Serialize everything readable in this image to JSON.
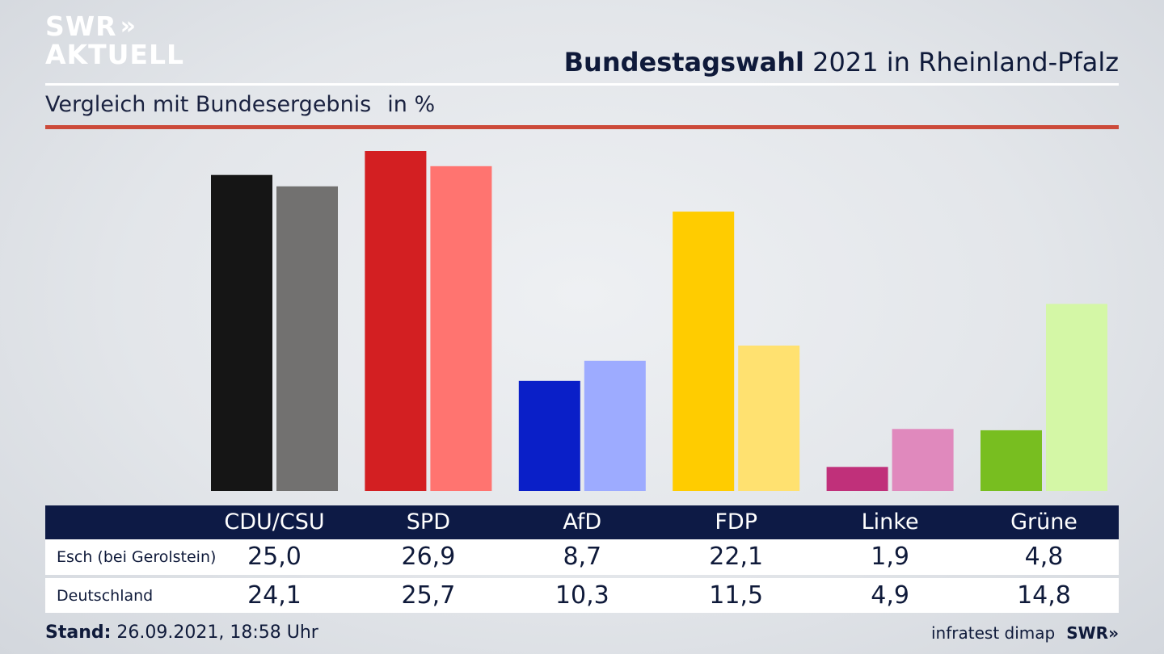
{
  "logo": {
    "line1": "SWR",
    "chevrons": "»",
    "line2": "AKTUELL"
  },
  "header": {
    "title_bold": "Bundestagswahl",
    "title_rest": " 2021 in Rheinland-Pfalz",
    "subtitle": "Vergleich mit Bundesergebnis",
    "unit": "in %"
  },
  "footer": {
    "stand_label": "Stand:",
    "stand_value": " 26.09.2021, 18:58 Uhr",
    "source": "infratest dimap",
    "brand": "SWR»"
  },
  "chart_data": {
    "type": "bar",
    "categories": [
      "CDU/CSU",
      "SPD",
      "AfD",
      "FDP",
      "Linke",
      "Grüne"
    ],
    "series": [
      {
        "name": "Esch (bei Gerolstein)",
        "values": [
          25.0,
          26.9,
          8.7,
          22.1,
          1.9,
          4.8
        ],
        "labels": [
          "25,0",
          "26,9",
          "8,7",
          "22,1",
          "1,9",
          "4,8"
        ]
      },
      {
        "name": "Deutschland",
        "values": [
          24.1,
          25.7,
          10.3,
          11.5,
          4.9,
          14.8
        ],
        "labels": [
          "24,1",
          "25,7",
          "10,3",
          "11,5",
          "4,9",
          "14,8"
        ]
      }
    ],
    "colors": {
      "Esch (bei Gerolstein)": [
        "#151515",
        "#d31f22",
        "#0a1fc8",
        "#ffcc00",
        "#c0307a",
        "#78be20"
      ],
      "Deutschland": [
        "#727170",
        "#ff7470",
        "#9dabff",
        "#ffe170",
        "#e089bd",
        "#d4f7a6"
      ]
    },
    "ylim": [
      0,
      27
    ]
  }
}
